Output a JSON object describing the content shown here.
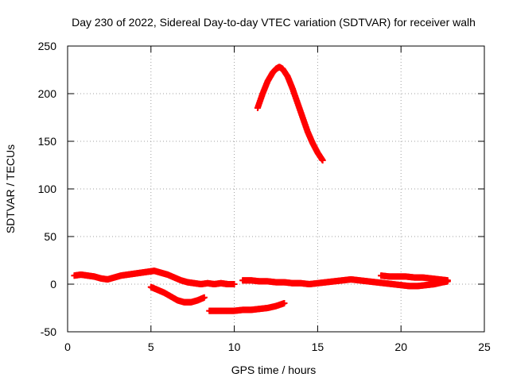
{
  "chart_data": {
    "type": "scatter",
    "title": "Day 230 of 2022, Sidereal Day-to-day VTEC variation (SDTVAR) for receiver walh",
    "xlabel": "GPS time / hours",
    "ylabel": "SDTVAR / TECUs",
    "xlim": [
      0,
      25
    ],
    "ylim": [
      -50,
      250
    ],
    "x_ticks": [
      0,
      5,
      10,
      15,
      20,
      25
    ],
    "y_ticks": [
      -50,
      0,
      50,
      100,
      150,
      200,
      250
    ],
    "grid": true,
    "marker": "+",
    "color": "#ff0000",
    "series": [
      {
        "name": "arc-high",
        "x": [
          11.4,
          11.7,
          12.0,
          12.3,
          12.5,
          12.7,
          12.9,
          13.2,
          13.5,
          13.8,
          14.1,
          14.4,
          14.7,
          15.0,
          15.3
        ],
        "y": [
          185,
          200,
          213,
          222,
          226,
          228,
          226,
          218,
          205,
          190,
          175,
          160,
          148,
          138,
          130
        ]
      },
      {
        "name": "arc-baseline-left",
        "x": [
          0.4,
          0.8,
          1.2,
          1.6,
          2.0,
          2.4,
          2.8,
          3.2,
          3.6,
          4.0,
          4.4,
          4.8,
          5.2,
          5.6,
          6.0,
          6.4,
          6.8,
          7.2,
          7.6,
          8.0,
          8.4,
          8.8,
          9.2,
          9.6,
          10.0
        ],
        "y": [
          9,
          10,
          9,
          8,
          6,
          5,
          7,
          9,
          10,
          11,
          12,
          13,
          14,
          12,
          10,
          7,
          4,
          2,
          1,
          0,
          1,
          0,
          1,
          0,
          0
        ]
      },
      {
        "name": "arc-baseline-mid",
        "x": [
          10.5,
          11.0,
          11.5,
          12.0,
          12.5,
          13.0,
          13.5,
          14.0,
          14.5,
          15.0,
          15.5,
          16.0,
          16.5,
          17.0,
          17.5,
          18.0,
          18.5,
          19.0,
          19.5,
          20.0,
          20.5,
          21.0,
          21.5,
          22.0,
          22.5,
          22.8
        ],
        "y": [
          4,
          4,
          3,
          3,
          2,
          2,
          1,
          1,
          0,
          1,
          2,
          3,
          4,
          5,
          4,
          3,
          2,
          1,
          0,
          -1,
          -2,
          -2,
          -1,
          0,
          2,
          3
        ]
      },
      {
        "name": "arc-upper-right",
        "x": [
          18.8,
          19.3,
          19.8,
          20.3,
          20.8,
          21.3,
          21.8,
          22.3,
          22.8
        ],
        "y": [
          9,
          8,
          8,
          8,
          7,
          7,
          6,
          5,
          4
        ]
      },
      {
        "name": "arc-neg-dip",
        "x": [
          5.0,
          5.4,
          5.8,
          6.2,
          6.6,
          7.0,
          7.4,
          7.8,
          8.2
        ],
        "y": [
          -3,
          -6,
          -9,
          -13,
          -17,
          -19,
          -19,
          -17,
          -14
        ]
      },
      {
        "name": "arc-neg-low",
        "x": [
          8.5,
          9.0,
          9.5,
          10.0,
          10.5,
          11.0,
          11.5,
          12.0,
          12.5,
          13.0
        ],
        "y": [
          -28,
          -28,
          -28,
          -28,
          -27,
          -27,
          -26,
          -25,
          -23,
          -20
        ]
      }
    ]
  }
}
